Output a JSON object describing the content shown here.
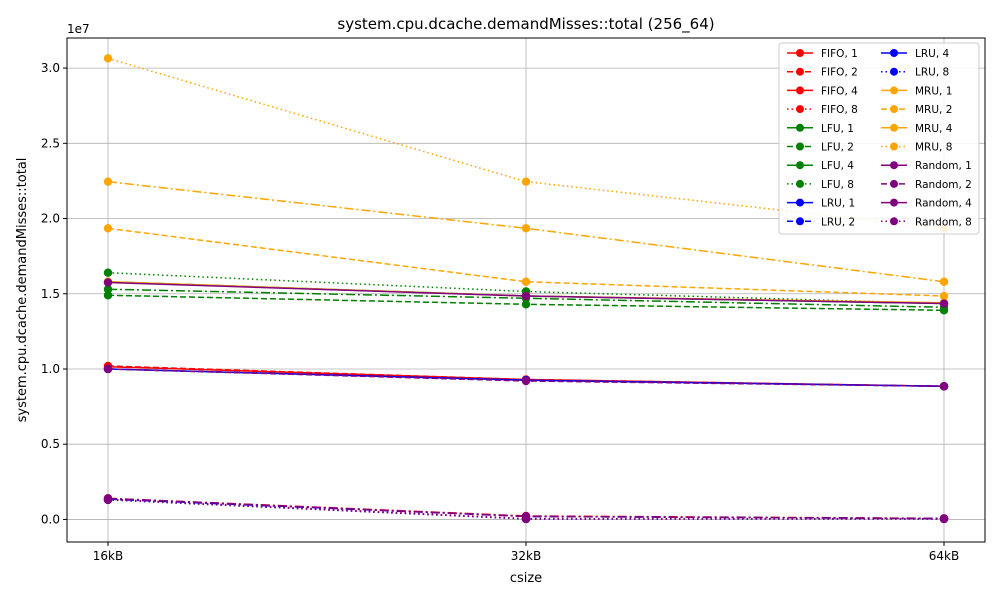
{
  "chart_data": {
    "type": "line",
    "title": "system.cpu.dcache.demandMisses::total (256_64)",
    "xlabel": "csize",
    "ylabel": "system.cpu.dcache.demandMisses::total",
    "scale_label": "1e7",
    "categories": [
      "16kB",
      "32kB",
      "64kB"
    ],
    "ylim": [
      -1500000,
      32000000
    ],
    "yticks": [
      0,
      5000000,
      10000000,
      15000000,
      20000000,
      25000000,
      30000000
    ],
    "ytick_labels": [
      "0.0",
      "0.5",
      "1.0",
      "1.5",
      "2.0",
      "2.5",
      "3.0"
    ],
    "grid": true,
    "legend_position": "top-right",
    "legend_columns": 2,
    "colors": {
      "FIFO": "#ff0000",
      "LFU": "#008000",
      "LRU": "#0000ff",
      "MRU": "#ffa500",
      "Random": "#800080"
    },
    "series": [
      {
        "name": "FIFO, 1",
        "policy": "FIFO",
        "style": "solid",
        "values": [
          10150000,
          9300000,
          8850000
        ]
      },
      {
        "name": "FIFO, 2",
        "policy": "FIFO",
        "style": "dashed",
        "values": [
          10200000,
          9300000,
          8850000
        ]
      },
      {
        "name": "FIFO, 4",
        "policy": "FIFO",
        "style": "dashdot",
        "values": [
          1400000,
          230000,
          70000
        ]
      },
      {
        "name": "FIFO, 8",
        "policy": "FIFO",
        "style": "dotted",
        "values": [
          1350000,
          60000,
          40000
        ]
      },
      {
        "name": "LFU, 1",
        "policy": "LFU",
        "style": "solid",
        "values": [
          15800000,
          14850000,
          14350000
        ]
      },
      {
        "name": "LFU, 2",
        "policy": "LFU",
        "style": "dashed",
        "values": [
          14900000,
          14300000,
          13900000
        ]
      },
      {
        "name": "LFU, 4",
        "policy": "LFU",
        "style": "dashdot",
        "values": [
          15300000,
          14700000,
          14100000
        ]
      },
      {
        "name": "LFU, 8",
        "policy": "LFU",
        "style": "dotted",
        "values": [
          16400000,
          15150000,
          14350000
        ]
      },
      {
        "name": "LRU, 1",
        "policy": "LRU",
        "style": "solid",
        "values": [
          10000000,
          9250000,
          8850000
        ]
      },
      {
        "name": "LRU, 2",
        "policy": "LRU",
        "style": "dashed",
        "values": [
          10000000,
          9250000,
          8850000
        ]
      },
      {
        "name": "LRU, 4",
        "policy": "LRU",
        "style": "dashdot",
        "values": [
          1350000,
          200000,
          60000
        ]
      },
      {
        "name": "LRU, 8",
        "policy": "LRU",
        "style": "dotted",
        "values": [
          1300000,
          30000,
          30000
        ]
      },
      {
        "name": "MRU, 1",
        "policy": "MRU",
        "style": "solid",
        "values": [
          15800000,
          14850000,
          14400000
        ]
      },
      {
        "name": "MRU, 2",
        "policy": "MRU",
        "style": "dashed",
        "values": [
          19350000,
          15800000,
          14850000
        ]
      },
      {
        "name": "MRU, 4",
        "policy": "MRU",
        "style": "dashdot",
        "values": [
          22450000,
          19350000,
          15800000
        ]
      },
      {
        "name": "MRU, 8",
        "policy": "MRU",
        "style": "dotted",
        "values": [
          30650000,
          22450000,
          19350000
        ]
      },
      {
        "name": "Random, 1",
        "policy": "Random",
        "style": "solid",
        "values": [
          15750000,
          14850000,
          14350000
        ]
      },
      {
        "name": "Random, 2",
        "policy": "Random",
        "style": "dashed",
        "values": [
          10000000,
          9200000,
          8850000
        ]
      },
      {
        "name": "Random, 4",
        "policy": "Random",
        "style": "dashdot",
        "values": [
          1400000,
          200000,
          60000
        ]
      },
      {
        "name": "Random, 8",
        "policy": "Random",
        "style": "dotted",
        "values": [
          1300000,
          30000,
          30000
        ]
      }
    ]
  }
}
